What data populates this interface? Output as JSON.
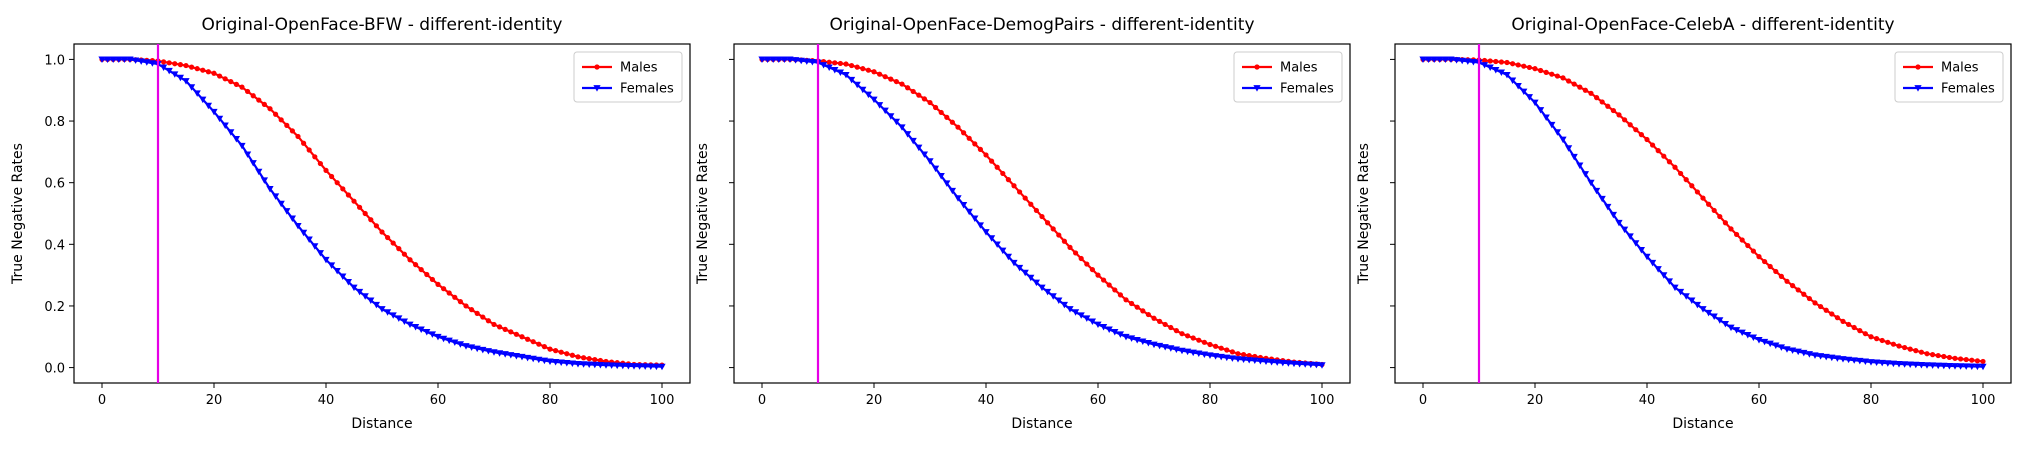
{
  "colors": {
    "males": "#ff0000",
    "females": "#0000ff",
    "threshold": "#e600e6",
    "axis": "#000000",
    "background": "#ffffff"
  },
  "chart_data": [
    {
      "type": "line",
      "title": "Original-OpenFace-BFW - different-identity",
      "xlabel": "Distance",
      "ylabel": "True Negative Rates",
      "xlim": [
        -5,
        105
      ],
      "ylim": [
        -0.05,
        1.05
      ],
      "xticks": [
        0,
        20,
        40,
        60,
        80,
        100
      ],
      "yticks": [
        "0.0",
        "0.2",
        "0.4",
        "0.6",
        "0.8",
        "1.0"
      ],
      "show_ytick_labels": true,
      "grid": false,
      "legend_position": "top-right",
      "vline": 10,
      "x": [
        0,
        5,
        10,
        15,
        20,
        25,
        30,
        35,
        40,
        45,
        50,
        55,
        60,
        65,
        70,
        75,
        80,
        85,
        90,
        95,
        100
      ],
      "series": [
        {
          "name": "Males",
          "marker": "circle",
          "values": [
            1.0,
            1.0,
            0.995,
            0.98,
            0.955,
            0.91,
            0.84,
            0.75,
            0.64,
            0.54,
            0.44,
            0.35,
            0.27,
            0.2,
            0.14,
            0.1,
            0.06,
            0.035,
            0.02,
            0.01,
            0.008
          ]
        },
        {
          "name": "Females",
          "marker": "triangle-down",
          "values": [
            1.0,
            1.0,
            0.985,
            0.93,
            0.83,
            0.72,
            0.58,
            0.46,
            0.35,
            0.26,
            0.19,
            0.14,
            0.1,
            0.07,
            0.05,
            0.035,
            0.02,
            0.012,
            0.008,
            0.005,
            0.003
          ]
        }
      ]
    },
    {
      "type": "line",
      "title": "Original-OpenFace-DemogPairs - different-identity",
      "xlabel": "Distance",
      "ylabel": "True Negative Rates",
      "xlim": [
        -5,
        105
      ],
      "ylim": [
        -0.05,
        1.05
      ],
      "xticks": [
        0,
        20,
        40,
        60,
        80,
        100
      ],
      "yticks": [
        "0.0",
        "0.2",
        "0.4",
        "0.6",
        "0.8",
        "1.0"
      ],
      "show_ytick_labels": false,
      "grid": false,
      "legend_position": "top-right",
      "vline": 10,
      "x": [
        0,
        5,
        10,
        15,
        20,
        25,
        30,
        35,
        40,
        45,
        50,
        55,
        60,
        65,
        70,
        75,
        80,
        85,
        90,
        95,
        100
      ],
      "series": [
        {
          "name": "Males",
          "marker": "circle",
          "values": [
            1.0,
            1.0,
            0.995,
            0.985,
            0.96,
            0.92,
            0.86,
            0.78,
            0.69,
            0.59,
            0.49,
            0.39,
            0.3,
            0.22,
            0.16,
            0.11,
            0.075,
            0.045,
            0.03,
            0.018,
            0.01
          ]
        },
        {
          "name": "Females",
          "marker": "triangle-down",
          "values": [
            1.0,
            1.0,
            0.99,
            0.95,
            0.87,
            0.78,
            0.67,
            0.55,
            0.44,
            0.34,
            0.26,
            0.19,
            0.14,
            0.1,
            0.075,
            0.055,
            0.04,
            0.028,
            0.02,
            0.013,
            0.008
          ]
        }
      ]
    },
    {
      "type": "line",
      "title": "Original-OpenFace-CelebA - different-identity",
      "xlabel": "Distance",
      "ylabel": "True Negative Rates",
      "xlim": [
        -5,
        105
      ],
      "ylim": [
        -0.05,
        1.05
      ],
      "xticks": [
        0,
        20,
        40,
        60,
        80,
        100
      ],
      "yticks": [
        "0.0",
        "0.2",
        "0.4",
        "0.6",
        "0.8",
        "1.0"
      ],
      "show_ytick_labels": false,
      "grid": false,
      "legend_position": "top-right",
      "vline": 10,
      "x": [
        0,
        5,
        10,
        15,
        20,
        25,
        30,
        35,
        40,
        45,
        50,
        55,
        60,
        65,
        70,
        75,
        80,
        85,
        90,
        95,
        100
      ],
      "series": [
        {
          "name": "Males",
          "marker": "circle",
          "values": [
            1.0,
            1.0,
            0.998,
            0.99,
            0.97,
            0.94,
            0.89,
            0.82,
            0.74,
            0.65,
            0.55,
            0.45,
            0.36,
            0.28,
            0.21,
            0.15,
            0.1,
            0.07,
            0.045,
            0.03,
            0.02
          ]
        },
        {
          "name": "Females",
          "marker": "triangle-down",
          "values": [
            1.0,
            1.0,
            0.99,
            0.95,
            0.86,
            0.74,
            0.6,
            0.47,
            0.36,
            0.26,
            0.19,
            0.13,
            0.09,
            0.06,
            0.04,
            0.028,
            0.018,
            0.012,
            0.008,
            0.005,
            0.003
          ]
        }
      ]
    }
  ]
}
